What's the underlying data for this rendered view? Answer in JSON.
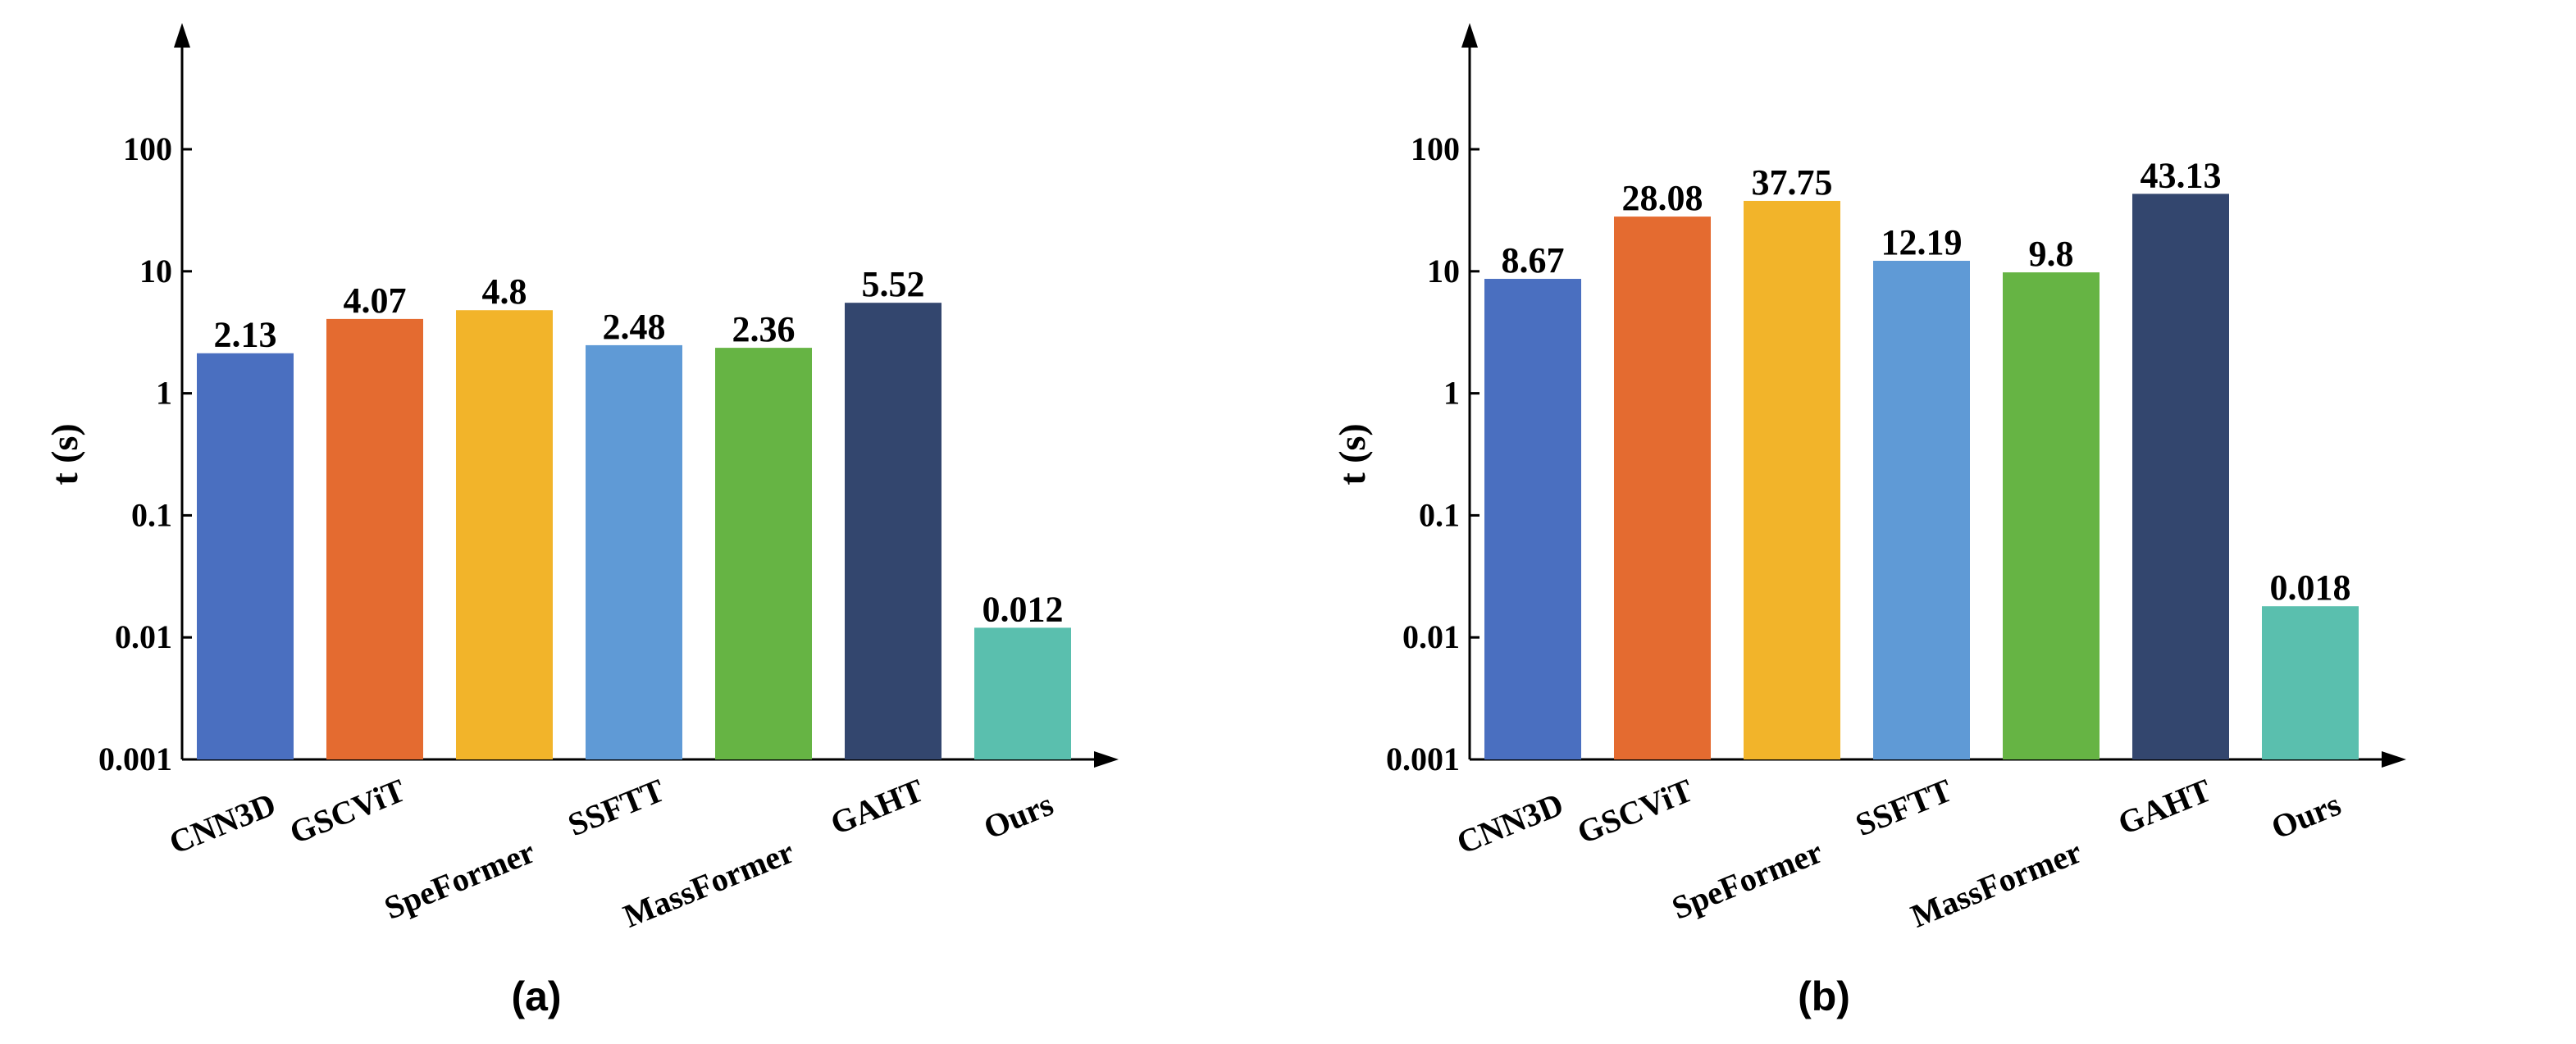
{
  "chart_data": [
    {
      "type": "bar",
      "panel_label": "(a)",
      "ylabel": "t (s)",
      "yscale": "log",
      "ylim": [
        0.001,
        100
      ],
      "yticks": [
        "0.001",
        "0.01",
        "0.1",
        "1",
        "10",
        "100"
      ],
      "categories": [
        "CNN3D",
        "GSCViT",
        "SpeFormer",
        "SSFTT",
        "MassFormer",
        "GAHT",
        "Ours"
      ],
      "values": [
        2.13,
        4.07,
        4.8,
        2.48,
        2.36,
        5.52,
        0.012
      ],
      "value_labels": [
        "2.13",
        "4.07",
        "4.8",
        "2.48",
        "2.36",
        "5.52",
        "0.012"
      ],
      "colors": [
        "#4a6fc0",
        "#e46b30",
        "#f2b42a",
        "#5f9ad6",
        "#66b444",
        "#33466e",
        "#5abfae"
      ],
      "grid": false
    },
    {
      "type": "bar",
      "panel_label": "(b)",
      "ylabel": "t (s)",
      "yscale": "log",
      "ylim": [
        0.001,
        100
      ],
      "yticks": [
        "0.001",
        "0.01",
        "0.1",
        "1",
        "10",
        "100"
      ],
      "categories": [
        "CNN3D",
        "GSCViT",
        "SpeFormer",
        "SSFTT",
        "MassFormer",
        "GAHT",
        "Ours"
      ],
      "values": [
        8.67,
        28.08,
        37.75,
        12.19,
        9.8,
        43.13,
        0.018
      ],
      "value_labels": [
        "8.67",
        "28.08",
        "37.75",
        "12.19",
        "9.8",
        "43.13",
        "0.018"
      ],
      "colors": [
        "#4a6fc0",
        "#e46b30",
        "#f2b42a",
        "#5f9ad6",
        "#66b444",
        "#33466e",
        "#5abfae"
      ],
      "grid": false
    }
  ]
}
